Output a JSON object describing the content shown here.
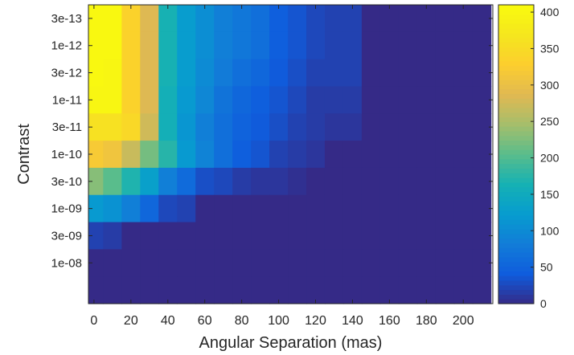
{
  "chart_data": {
    "type": "heatmap",
    "xlabel": "Angular Separation (mas)",
    "ylabel": "Contrast",
    "x_ticks": [
      0,
      20,
      40,
      60,
      80,
      100,
      120,
      140,
      160,
      180,
      200
    ],
    "x_tick_labels": [
      "0",
      "20",
      "40",
      "60",
      "80",
      "100",
      "120",
      "140",
      "160",
      "180",
      "200"
    ],
    "xlim": [
      -3,
      216
    ],
    "x_bin_width": 10,
    "y_tick_labels": [
      "3e-13",
      "1e-12",
      "3e-12",
      "1e-11",
      "3e-11",
      "1e-10",
      "3e-10",
      "1e-09",
      "3e-09",
      "1e-08"
    ],
    "y_rows": 11,
    "colorbar": {
      "min": 0,
      "max": 410,
      "ticks": [
        0,
        50,
        100,
        150,
        200,
        250,
        300,
        350,
        400
      ],
      "colormap": "parula"
    },
    "values": [
      [
        405,
        405,
        335,
        285,
        165,
        125,
        105,
        85,
        75,
        65,
        45,
        35,
        25,
        20,
        20,
        0,
        0,
        0,
        0,
        0,
        0,
        0
      ],
      [
        405,
        405,
        335,
        285,
        165,
        125,
        105,
        85,
        75,
        65,
        45,
        35,
        25,
        20,
        20,
        0,
        0,
        0,
        0,
        0,
        0,
        0
      ],
      [
        405,
        400,
        335,
        285,
        165,
        125,
        100,
        80,
        65,
        55,
        40,
        30,
        20,
        20,
        20,
        0,
        0,
        0,
        0,
        0,
        0,
        0
      ],
      [
        400,
        400,
        335,
        285,
        160,
        120,
        95,
        70,
        55,
        45,
        35,
        25,
        15,
        15,
        15,
        0,
        0,
        0,
        0,
        0,
        0,
        0
      ],
      [
        360,
        360,
        345,
        275,
        160,
        115,
        85,
        65,
        50,
        40,
        30,
        20,
        15,
        10,
        10,
        0,
        0,
        0,
        0,
        0,
        0,
        0
      ],
      [
        320,
        310,
        270,
        220,
        175,
        120,
        90,
        65,
        45,
        35,
        20,
        15,
        10,
        0,
        0,
        0,
        0,
        0,
        0,
        0,
        0,
        0
      ],
      [
        230,
        205,
        170,
        130,
        85,
        60,
        30,
        25,
        15,
        10,
        10,
        5,
        0,
        0,
        0,
        0,
        0,
        0,
        0,
        0,
        0,
        0
      ],
      [
        120,
        110,
        85,
        55,
        25,
        20,
        0,
        0,
        0,
        0,
        0,
        0,
        0,
        0,
        0,
        0,
        0,
        0,
        0,
        0,
        0,
        0
      ],
      [
        20,
        15,
        0,
        0,
        0,
        0,
        0,
        0,
        0,
        0,
        0,
        0,
        0,
        0,
        0,
        0,
        0,
        0,
        0,
        0,
        0,
        0
      ],
      [
        0,
        0,
        0,
        0,
        0,
        0,
        0,
        0,
        0,
        0,
        0,
        0,
        0,
        0,
        0,
        0,
        0,
        0,
        0,
        0,
        0,
        0
      ],
      [
        0,
        0,
        0,
        0,
        0,
        0,
        0,
        0,
        0,
        0,
        0,
        0,
        0,
        0,
        0,
        0,
        0,
        0,
        0,
        0,
        0,
        0
      ]
    ]
  }
}
